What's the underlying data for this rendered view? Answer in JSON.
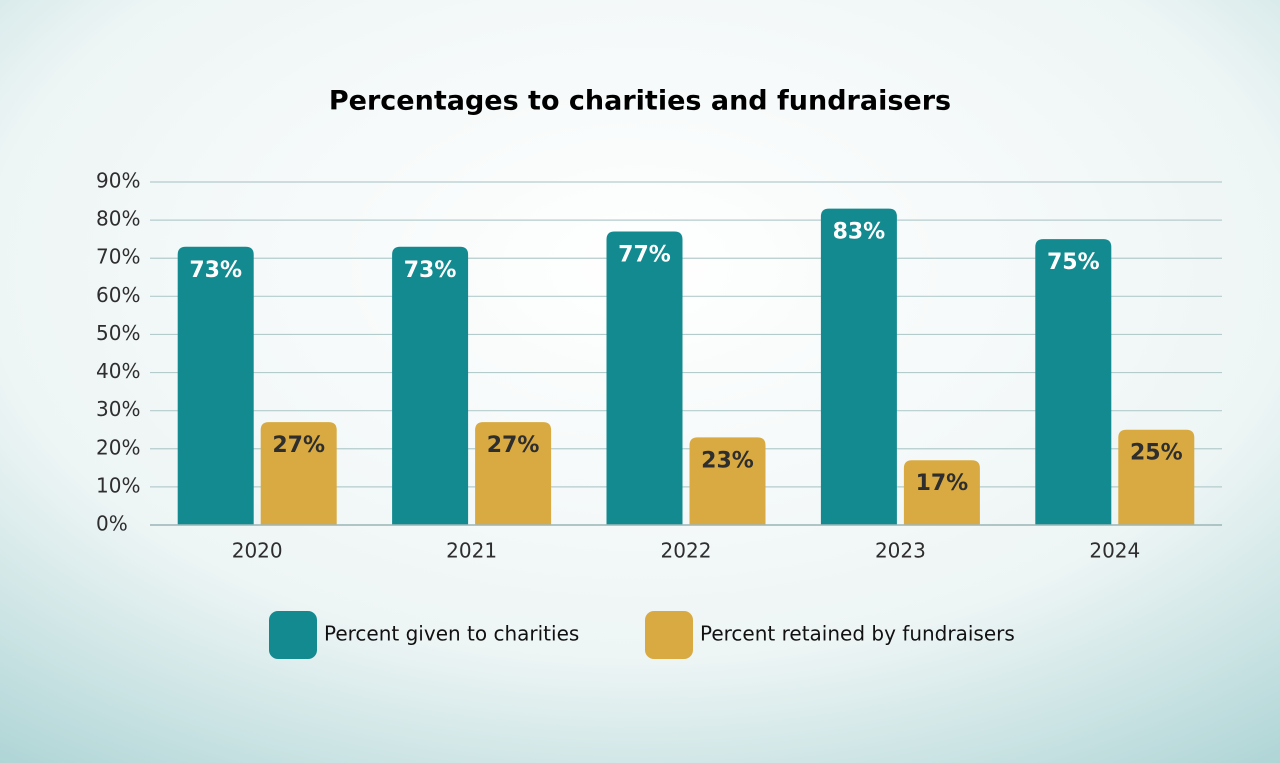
{
  "chart_data": {
    "type": "bar",
    "title": "Percentages to charities and fundraisers",
    "categories": [
      "2020",
      "2021",
      "2022",
      "2023",
      "2024"
    ],
    "series": [
      {
        "name": "Percent given to charities",
        "color": "#128a8f",
        "values": [
          73,
          73,
          77,
          83,
          75
        ],
        "value_labels": [
          "73%",
          "73%",
          "77%",
          "83%",
          "75%"
        ]
      },
      {
        "name": "Percent retained by fundraisers",
        "color": "#d8aa41",
        "values": [
          27,
          27,
          23,
          17,
          25
        ],
        "value_labels": [
          "27%",
          "27%",
          "23%",
          "17%",
          "25%"
        ]
      }
    ],
    "ylim": [
      0,
      90
    ],
    "yticks": [
      {
        "value": 0,
        "label": "0%"
      },
      {
        "value": 10,
        "label": "10%"
      },
      {
        "value": 20,
        "label": "20%"
      },
      {
        "value": 30,
        "label": "30%"
      },
      {
        "value": 40,
        "label": "40%"
      },
      {
        "value": 50,
        "label": "50%"
      },
      {
        "value": 60,
        "label": "60%"
      },
      {
        "value": 70,
        "label": "70%"
      },
      {
        "value": 80,
        "label": "80%"
      },
      {
        "value": 90,
        "label": "90%"
      }
    ],
    "grid": true
  }
}
